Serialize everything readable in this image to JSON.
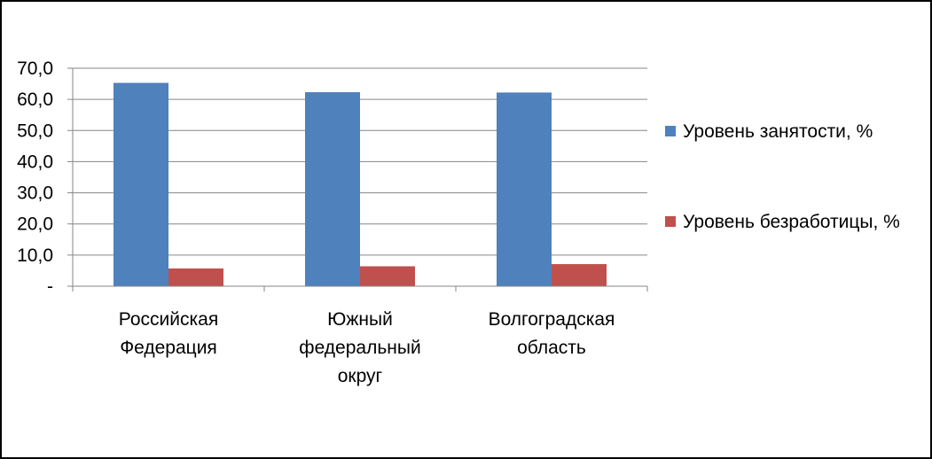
{
  "chart_data": {
    "type": "bar",
    "categories": [
      [
        "Российская",
        "Федерация"
      ],
      [
        "Южный",
        "федеральный",
        "округ"
      ],
      [
        "Волгоградская",
        "область"
      ]
    ],
    "series": [
      {
        "name": "Уровень занятости, %",
        "color": "#4F81BD",
        "values": [
          65.3,
          62.3,
          62.2
        ]
      },
      {
        "name": "Уровень безработицы, %",
        "color": "#C0504D",
        "values": [
          5.7,
          6.4,
          7.1
        ]
      }
    ],
    "ylim": [
      0,
      70
    ],
    "y_ticks": [
      {
        "value": 0,
        "label": "-"
      },
      {
        "value": 10,
        "label": "10,0"
      },
      {
        "value": 20,
        "label": "20,0"
      },
      {
        "value": 30,
        "label": "30,0"
      },
      {
        "value": 40,
        "label": "40,0"
      },
      {
        "value": 50,
        "label": "50,0"
      },
      {
        "value": 60,
        "label": "60,0"
      },
      {
        "value": 70,
        "label": "70,0"
      }
    ],
    "grid": true,
    "legend_position": "right",
    "title": "",
    "xlabel": "",
    "ylabel": ""
  }
}
